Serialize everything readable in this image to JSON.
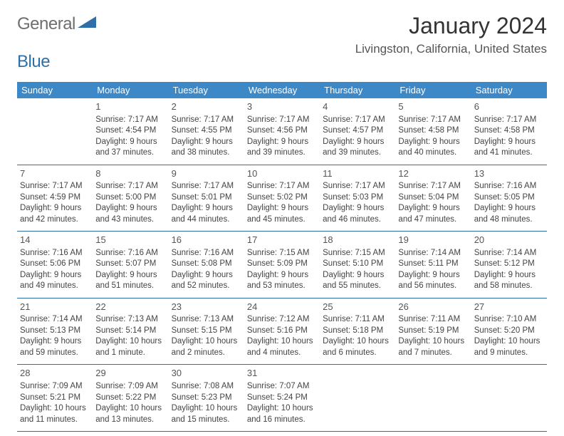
{
  "logo": {
    "part1": "General",
    "part2": "Blue"
  },
  "title": "January 2024",
  "location": "Livingston, California, United States",
  "day_headers": [
    "Sunday",
    "Monday",
    "Tuesday",
    "Wednesday",
    "Thursday",
    "Friday",
    "Saturday"
  ],
  "colors": {
    "header_bg": "#3d88c7",
    "header_text": "#ffffff",
    "rule": "#2f6fa7",
    "logo_gray": "#6e6e6e",
    "logo_blue": "#2f6fa7",
    "body_text": "#444444"
  },
  "weeks": [
    [
      null,
      {
        "n": "1",
        "sr": "Sunrise: 7:17 AM",
        "ss": "Sunset: 4:54 PM",
        "d1": "Daylight: 9 hours",
        "d2": "and 37 minutes."
      },
      {
        "n": "2",
        "sr": "Sunrise: 7:17 AM",
        "ss": "Sunset: 4:55 PM",
        "d1": "Daylight: 9 hours",
        "d2": "and 38 minutes."
      },
      {
        "n": "3",
        "sr": "Sunrise: 7:17 AM",
        "ss": "Sunset: 4:56 PM",
        "d1": "Daylight: 9 hours",
        "d2": "and 39 minutes."
      },
      {
        "n": "4",
        "sr": "Sunrise: 7:17 AM",
        "ss": "Sunset: 4:57 PM",
        "d1": "Daylight: 9 hours",
        "d2": "and 39 minutes."
      },
      {
        "n": "5",
        "sr": "Sunrise: 7:17 AM",
        "ss": "Sunset: 4:58 PM",
        "d1": "Daylight: 9 hours",
        "d2": "and 40 minutes."
      },
      {
        "n": "6",
        "sr": "Sunrise: 7:17 AM",
        "ss": "Sunset: 4:58 PM",
        "d1": "Daylight: 9 hours",
        "d2": "and 41 minutes."
      }
    ],
    [
      {
        "n": "7",
        "sr": "Sunrise: 7:17 AM",
        "ss": "Sunset: 4:59 PM",
        "d1": "Daylight: 9 hours",
        "d2": "and 42 minutes."
      },
      {
        "n": "8",
        "sr": "Sunrise: 7:17 AM",
        "ss": "Sunset: 5:00 PM",
        "d1": "Daylight: 9 hours",
        "d2": "and 43 minutes."
      },
      {
        "n": "9",
        "sr": "Sunrise: 7:17 AM",
        "ss": "Sunset: 5:01 PM",
        "d1": "Daylight: 9 hours",
        "d2": "and 44 minutes."
      },
      {
        "n": "10",
        "sr": "Sunrise: 7:17 AM",
        "ss": "Sunset: 5:02 PM",
        "d1": "Daylight: 9 hours",
        "d2": "and 45 minutes."
      },
      {
        "n": "11",
        "sr": "Sunrise: 7:17 AM",
        "ss": "Sunset: 5:03 PM",
        "d1": "Daylight: 9 hours",
        "d2": "and 46 minutes."
      },
      {
        "n": "12",
        "sr": "Sunrise: 7:17 AM",
        "ss": "Sunset: 5:04 PM",
        "d1": "Daylight: 9 hours",
        "d2": "and 47 minutes."
      },
      {
        "n": "13",
        "sr": "Sunrise: 7:16 AM",
        "ss": "Sunset: 5:05 PM",
        "d1": "Daylight: 9 hours",
        "d2": "and 48 minutes."
      }
    ],
    [
      {
        "n": "14",
        "sr": "Sunrise: 7:16 AM",
        "ss": "Sunset: 5:06 PM",
        "d1": "Daylight: 9 hours",
        "d2": "and 49 minutes."
      },
      {
        "n": "15",
        "sr": "Sunrise: 7:16 AM",
        "ss": "Sunset: 5:07 PM",
        "d1": "Daylight: 9 hours",
        "d2": "and 51 minutes."
      },
      {
        "n": "16",
        "sr": "Sunrise: 7:16 AM",
        "ss": "Sunset: 5:08 PM",
        "d1": "Daylight: 9 hours",
        "d2": "and 52 minutes."
      },
      {
        "n": "17",
        "sr": "Sunrise: 7:15 AM",
        "ss": "Sunset: 5:09 PM",
        "d1": "Daylight: 9 hours",
        "d2": "and 53 minutes."
      },
      {
        "n": "18",
        "sr": "Sunrise: 7:15 AM",
        "ss": "Sunset: 5:10 PM",
        "d1": "Daylight: 9 hours",
        "d2": "and 55 minutes."
      },
      {
        "n": "19",
        "sr": "Sunrise: 7:14 AM",
        "ss": "Sunset: 5:11 PM",
        "d1": "Daylight: 9 hours",
        "d2": "and 56 minutes."
      },
      {
        "n": "20",
        "sr": "Sunrise: 7:14 AM",
        "ss": "Sunset: 5:12 PM",
        "d1": "Daylight: 9 hours",
        "d2": "and 58 minutes."
      }
    ],
    [
      {
        "n": "21",
        "sr": "Sunrise: 7:14 AM",
        "ss": "Sunset: 5:13 PM",
        "d1": "Daylight: 9 hours",
        "d2": "and 59 minutes."
      },
      {
        "n": "22",
        "sr": "Sunrise: 7:13 AM",
        "ss": "Sunset: 5:14 PM",
        "d1": "Daylight: 10 hours",
        "d2": "and 1 minute."
      },
      {
        "n": "23",
        "sr": "Sunrise: 7:13 AM",
        "ss": "Sunset: 5:15 PM",
        "d1": "Daylight: 10 hours",
        "d2": "and 2 minutes."
      },
      {
        "n": "24",
        "sr": "Sunrise: 7:12 AM",
        "ss": "Sunset: 5:16 PM",
        "d1": "Daylight: 10 hours",
        "d2": "and 4 minutes."
      },
      {
        "n": "25",
        "sr": "Sunrise: 7:11 AM",
        "ss": "Sunset: 5:18 PM",
        "d1": "Daylight: 10 hours",
        "d2": "and 6 minutes."
      },
      {
        "n": "26",
        "sr": "Sunrise: 7:11 AM",
        "ss": "Sunset: 5:19 PM",
        "d1": "Daylight: 10 hours",
        "d2": "and 7 minutes."
      },
      {
        "n": "27",
        "sr": "Sunrise: 7:10 AM",
        "ss": "Sunset: 5:20 PM",
        "d1": "Daylight: 10 hours",
        "d2": "and 9 minutes."
      }
    ],
    [
      {
        "n": "28",
        "sr": "Sunrise: 7:09 AM",
        "ss": "Sunset: 5:21 PM",
        "d1": "Daylight: 10 hours",
        "d2": "and 11 minutes."
      },
      {
        "n": "29",
        "sr": "Sunrise: 7:09 AM",
        "ss": "Sunset: 5:22 PM",
        "d1": "Daylight: 10 hours",
        "d2": "and 13 minutes."
      },
      {
        "n": "30",
        "sr": "Sunrise: 7:08 AM",
        "ss": "Sunset: 5:23 PM",
        "d1": "Daylight: 10 hours",
        "d2": "and 15 minutes."
      },
      {
        "n": "31",
        "sr": "Sunrise: 7:07 AM",
        "ss": "Sunset: 5:24 PM",
        "d1": "Daylight: 10 hours",
        "d2": "and 16 minutes."
      },
      null,
      null,
      null
    ]
  ]
}
